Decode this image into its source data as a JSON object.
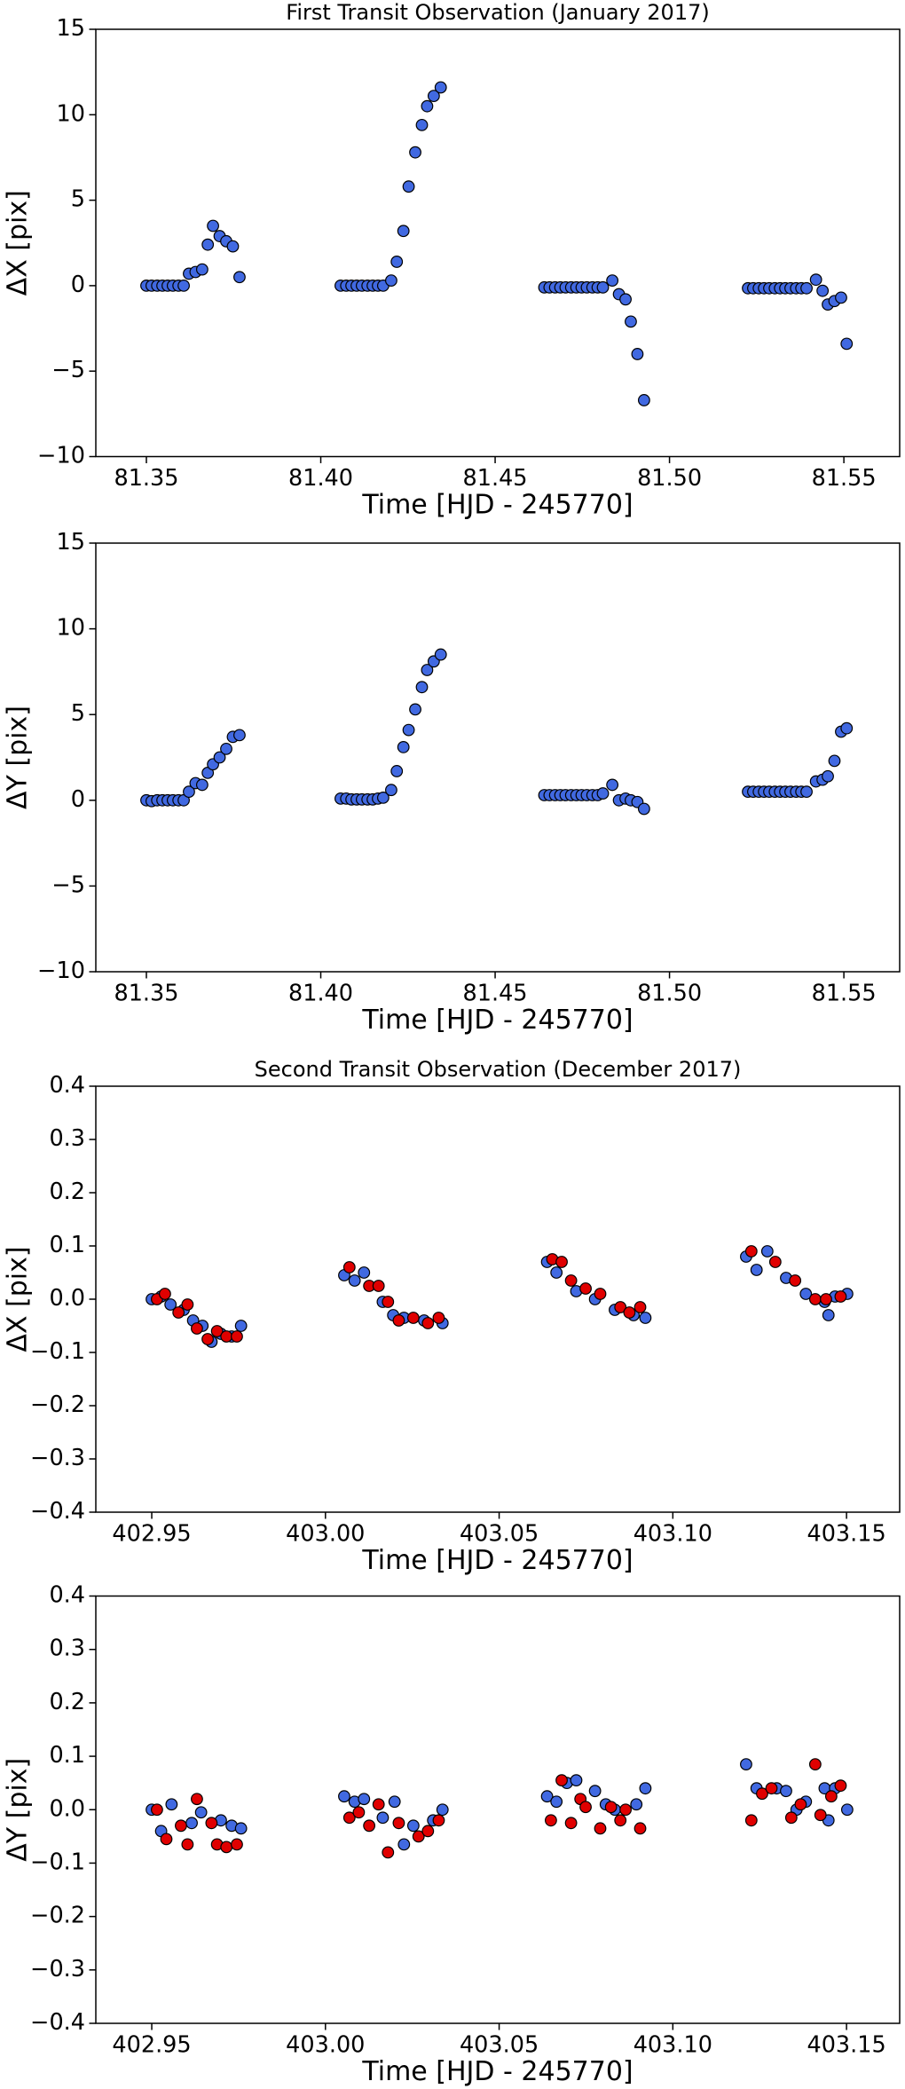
{
  "chart_data": [
    {
      "type": "scatter",
      "title": "First Transit Observation (January 2017)",
      "xlabel": "Time [HJD - 245770]",
      "ylabel": "ΔX [pix]",
      "xlim": [
        81.3355,
        81.566
      ],
      "ylim": [
        -10,
        15
      ],
      "xticks": [
        81.35,
        {
          "value": 81.4,
          "label": "81.40"
        },
        81.45,
        {
          "value": 81.5,
          "label": "81.50"
        },
        81.55
      ],
      "yticks": [
        {
          "value": -10,
          "label": "−10"
        },
        {
          "value": -5,
          "label": "−5"
        },
        0,
        5,
        10,
        15
      ],
      "series": [
        {
          "color": "#4169e1",
          "x": [
            81.35,
            81.3515,
            81.3531,
            81.3546,
            81.3561,
            81.3576,
            81.3592,
            81.3607,
            81.3622,
            81.3641,
            81.366,
            81.3676,
            81.3691,
            81.371,
            81.3729,
            81.3748,
            81.3767,
            81.4057,
            81.4073,
            81.4088,
            81.4103,
            81.4118,
            81.4134,
            81.4149,
            81.4164,
            81.4179,
            81.4202,
            81.4218,
            81.4237,
            81.4252,
            81.4271,
            81.429,
            81.4305,
            81.4324,
            81.4344,
            81.4641,
            81.4656,
            81.4672,
            81.4687,
            81.4702,
            81.4718,
            81.4733,
            81.4748,
            81.4763,
            81.4779,
            81.4794,
            81.4809,
            81.4836,
            81.4855,
            81.4874,
            81.4889,
            81.4908,
            81.4927,
            81.5225,
            81.524,
            81.5256,
            81.5271,
            81.5286,
            81.5302,
            81.5317,
            81.5332,
            81.5347,
            81.5363,
            81.5378,
            81.5393,
            81.542,
            81.5439,
            81.5454,
            81.5473,
            81.5492,
            81.5508
          ],
          "values": [
            0,
            0,
            0,
            0,
            0,
            0,
            0,
            0,
            0.7,
            0.8,
            0.95,
            2.4,
            3.5,
            2.9,
            2.6,
            2.3,
            0.5,
            0,
            0,
            0,
            0,
            0,
            0,
            0,
            0,
            0,
            0.3,
            1.4,
            3.2,
            5.8,
            7.8,
            9.4,
            10.5,
            11.1,
            11.6,
            -0.1,
            -0.1,
            -0.1,
            -0.1,
            -0.1,
            -0.1,
            -0.1,
            -0.1,
            -0.1,
            -0.1,
            -0.1,
            -0.1,
            0.3,
            -0.5,
            -0.8,
            -2.1,
            -4.0,
            -6.7,
            -0.15,
            -0.15,
            -0.15,
            -0.15,
            -0.15,
            -0.15,
            -0.15,
            -0.15,
            -0.15,
            -0.15,
            -0.15,
            -0.15,
            0.35,
            -0.3,
            -1.1,
            -0.9,
            -0.7,
            -3.4
          ]
        }
      ]
    },
    {
      "type": "scatter",
      "xlabel": "Time [HJD - 245770]",
      "ylabel": "ΔY [pix]",
      "xlim": [
        81.3355,
        81.566
      ],
      "ylim": [
        -10,
        15
      ],
      "xticks": [
        81.35,
        {
          "value": 81.4,
          "label": "81.40"
        },
        81.45,
        {
          "value": 81.5,
          "label": "81.50"
        },
        81.55
      ],
      "yticks": [
        {
          "value": -10,
          "label": "−10"
        },
        {
          "value": -5,
          "label": "−5"
        },
        0,
        5,
        10,
        15
      ],
      "series": [
        {
          "color": "#4169e1",
          "x": [
            81.35,
            81.3515,
            81.3531,
            81.3546,
            81.3561,
            81.3576,
            81.3592,
            81.3607,
            81.3622,
            81.3641,
            81.366,
            81.3676,
            81.3691,
            81.371,
            81.3729,
            81.3748,
            81.3767,
            81.4057,
            81.4073,
            81.4088,
            81.4103,
            81.4118,
            81.4134,
            81.4149,
            81.4164,
            81.4179,
            81.4202,
            81.4218,
            81.4237,
            81.4252,
            81.4271,
            81.429,
            81.4305,
            81.4324,
            81.4344,
            81.4641,
            81.4656,
            81.4672,
            81.4687,
            81.4702,
            81.4718,
            81.4733,
            81.4748,
            81.4763,
            81.4779,
            81.4794,
            81.4809,
            81.4836,
            81.4855,
            81.4874,
            81.4889,
            81.4908,
            81.4927,
            81.5225,
            81.524,
            81.5256,
            81.5271,
            81.5286,
            81.5302,
            81.5317,
            81.5332,
            81.5347,
            81.5363,
            81.5378,
            81.5393,
            81.542,
            81.5439,
            81.5454,
            81.5473,
            81.5492,
            81.5508
          ],
          "values": [
            0,
            -0.05,
            0,
            0,
            0,
            0,
            0,
            0,
            0.5,
            1.0,
            0.9,
            1.6,
            2.1,
            2.5,
            3.0,
            3.7,
            3.8,
            0.1,
            0.1,
            0.05,
            0.05,
            0.05,
            0.05,
            0.05,
            0.1,
            0.15,
            0.6,
            1.7,
            3.1,
            4.1,
            5.3,
            6.6,
            7.6,
            8.1,
            8.5,
            0.3,
            0.3,
            0.3,
            0.3,
            0.3,
            0.3,
            0.3,
            0.3,
            0.3,
            0.3,
            0.3,
            0.4,
            0.9,
            0.0,
            0.1,
            0.0,
            -0.1,
            -0.5,
            0.5,
            0.5,
            0.5,
            0.5,
            0.5,
            0.5,
            0.5,
            0.5,
            0.5,
            0.5,
            0.5,
            0.5,
            1.1,
            1.2,
            1.4,
            2.3,
            4.0,
            4.2
          ]
        }
      ]
    },
    {
      "type": "scatter",
      "title": "Second Transit Observation (December 2017)",
      "xlabel": "Time [HJD - 245770]",
      "ylabel": "ΔX [pix]",
      "xlim": [
        402.9339,
        403.1653
      ],
      "ylim": [
        -0.4,
        0.4
      ],
      "xticks": [
        402.95,
        {
          "value": 403,
          "label": "403.00"
        },
        403.05,
        {
          "value": 403.1,
          "label": "403.10"
        },
        403.15
      ],
      "yticks": [
        {
          "value": -0.4,
          "label": "−0.4"
        },
        {
          "value": -0.3,
          "label": "−0.3"
        },
        {
          "value": -0.2,
          "label": "−0.2"
        },
        {
          "value": -0.1,
          "label": "−0.1"
        },
        {
          "value": 0,
          "label": "0.0"
        },
        0.1,
        0.2,
        0.3,
        0.4
      ],
      "series": [
        {
          "color": "#4169e1",
          "x": [
            402.95,
            402.9527,
            402.9554,
            402.9592,
            402.9619,
            402.9646,
            402.9672,
            402.9699,
            402.973,
            402.9757,
            403.0054,
            403.0084,
            403.0111,
            403.0165,
            403.0195,
            403.0226,
            403.0284,
            403.0337,
            403.0638,
            403.0665,
            403.0722,
            403.0776,
            403.0833,
            403.0887,
            403.0921,
            403.1211,
            403.1241,
            403.1272,
            403.1326,
            403.1383,
            403.1437,
            403.1448,
            403.1467,
            403.1502
          ],
          "values": [
            0.0,
            0.005,
            -0.01,
            -0.02,
            -0.04,
            -0.05,
            -0.08,
            -0.065,
            -0.07,
            -0.05,
            0.045,
            0.035,
            0.05,
            -0.005,
            -0.03,
            -0.035,
            -0.04,
            -0.045,
            0.07,
            0.05,
            0.015,
            0.0,
            -0.02,
            -0.03,
            -0.035,
            0.08,
            0.055,
            0.09,
            0.04,
            0.01,
            -0.005,
            -0.03,
            0.005,
            0.01
          ]
        },
        {
          "color": "#e00000",
          "x": [
            402.9515,
            402.9538,
            402.9577,
            402.9603,
            402.963,
            402.9661,
            402.9688,
            402.9715,
            402.9745,
            403.0069,
            403.0126,
            403.0153,
            403.018,
            403.0211,
            403.0253,
            403.0295,
            403.0326,
            403.0653,
            403.068,
            403.0707,
            403.0749,
            403.0791,
            403.0849,
            403.0875,
            403.0906,
            403.1226,
            403.1295,
            403.1352,
            403.141,
            403.1441,
            403.1483
          ],
          "values": [
            0.0,
            0.01,
            -0.025,
            -0.01,
            -0.055,
            -0.075,
            -0.06,
            -0.07,
            -0.07,
            0.06,
            0.025,
            0.025,
            -0.005,
            -0.04,
            -0.035,
            -0.045,
            -0.035,
            0.075,
            0.07,
            0.035,
            0.02,
            0.01,
            -0.015,
            -0.025,
            -0.015,
            0.09,
            0.07,
            0.035,
            0.0,
            0.0,
            0.005
          ]
        }
      ]
    },
    {
      "type": "scatter",
      "xlabel": "Time [HJD - 245770]",
      "ylabel": "ΔY [pix]",
      "xlim": [
        402.9339,
        403.1653
      ],
      "ylim": [
        -0.4,
        0.4
      ],
      "xticks": [
        402.95,
        {
          "value": 403,
          "label": "403.00"
        },
        403.05,
        {
          "value": 403.1,
          "label": "403.10"
        },
        403.15
      ],
      "yticks": [
        {
          "value": -0.4,
          "label": "−0.4"
        },
        {
          "value": -0.3,
          "label": "−0.3"
        },
        {
          "value": -0.2,
          "label": "−0.2"
        },
        {
          "value": -0.1,
          "label": "−0.1"
        },
        {
          "value": 0,
          "label": "0.0"
        },
        0.1,
        0.2,
        0.3,
        0.4
      ],
      "series": [
        {
          "color": "#4169e1",
          "x": [
            402.95,
            402.9527,
            402.9557,
            402.9615,
            402.9642,
            402.9699,
            402.973,
            402.9757,
            403.0054,
            403.0084,
            403.0111,
            403.0165,
            403.0199,
            403.0226,
            403.0253,
            403.031,
            403.0337,
            403.0638,
            403.0665,
            403.0695,
            403.0722,
            403.0776,
            403.0807,
            403.0833,
            403.0895,
            403.0921,
            403.1211,
            403.1241,
            403.1299,
            403.1326,
            403.1356,
            403.1383,
            403.1437,
            403.1448,
            403.1467,
            403.1502
          ],
          "values": [
            0.0,
            -0.04,
            0.01,
            -0.025,
            -0.005,
            -0.02,
            -0.03,
            -0.035,
            0.025,
            0.015,
            0.02,
            -0.015,
            0.015,
            -0.065,
            -0.03,
            -0.02,
            0.0,
            0.025,
            0.015,
            0.05,
            0.055,
            0.035,
            0.01,
            0.0,
            0.01,
            0.04,
            0.085,
            0.04,
            0.04,
            0.035,
            0.0,
            0.015,
            0.04,
            -0.02,
            0.04,
            0.0
          ]
        },
        {
          "color": "#e00000",
          "x": [
            402.9515,
            402.9542,
            402.9584,
            402.9603,
            402.963,
            402.9672,
            402.9688,
            402.9715,
            402.9745,
            403.0069,
            403.0096,
            403.0126,
            403.0153,
            403.018,
            403.0211,
            403.0268,
            403.0295,
            403.0326,
            403.0649,
            403.068,
            403.0707,
            403.0734,
            403.0749,
            403.0791,
            403.0822,
            403.0849,
            403.0864,
            403.0906,
            403.1226,
            403.1257,
            403.1284,
            403.1341,
            403.1368,
            403.141,
            403.1425,
            403.1456,
            403.1483
          ],
          "values": [
            0.0,
            -0.055,
            -0.03,
            -0.065,
            0.02,
            -0.025,
            -0.065,
            -0.07,
            -0.065,
            -0.015,
            -0.005,
            -0.03,
            0.01,
            -0.08,
            -0.025,
            -0.05,
            -0.04,
            -0.02,
            -0.02,
            0.055,
            -0.025,
            0.02,
            0.005,
            -0.035,
            0.005,
            -0.02,
            0.0,
            -0.035,
            -0.02,
            0.03,
            0.04,
            -0.015,
            0.01,
            0.085,
            -0.01,
            0.025,
            0.045
          ]
        }
      ]
    }
  ]
}
